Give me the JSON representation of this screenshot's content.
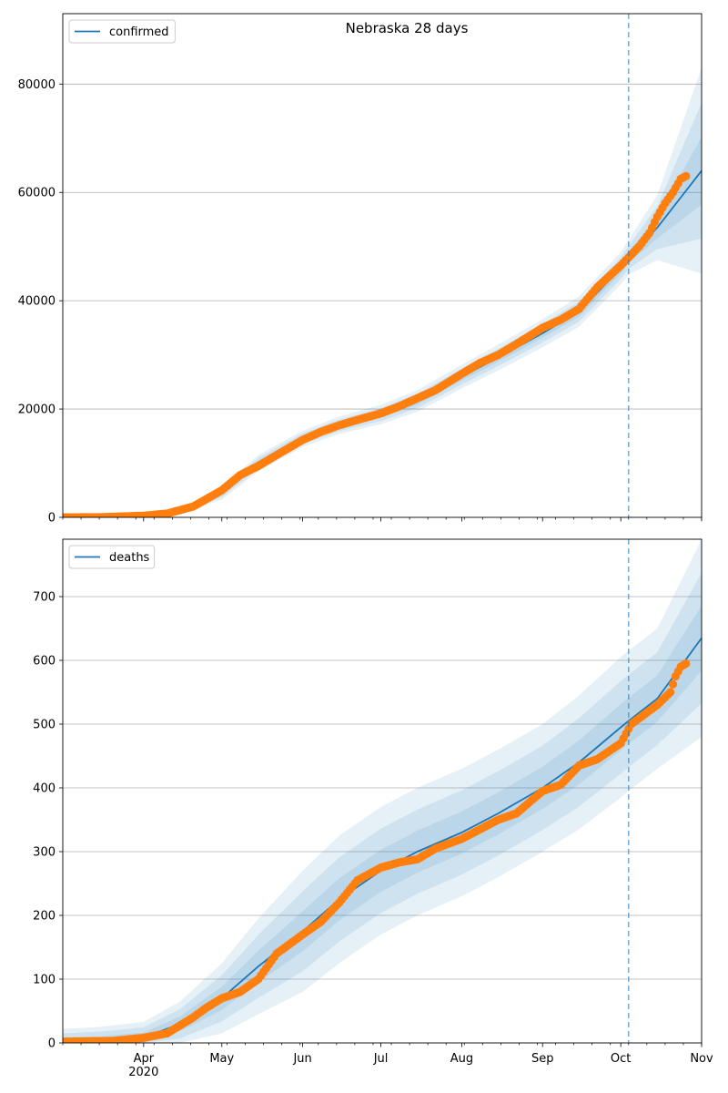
{
  "chart_data": [
    {
      "type": "line",
      "title": "Nebraska 28 days",
      "legend": [
        "confirmed"
      ],
      "legend_position": "upper-left",
      "ylim": [
        0,
        93000
      ],
      "yticks": [
        0,
        20000,
        40000,
        60000,
        80000
      ],
      "x_range": [
        "2020-03-01",
        "2020-11-01"
      ],
      "forecast_start": "2020-10-04",
      "grid": "horizontal",
      "colors": {
        "line": "#1f77b4",
        "observed": "#ff7f0e",
        "band": "#1f77b4"
      },
      "series": [
        {
          "name": "confirmed",
          "kind": "model",
          "x": [
            "2020-03-01",
            "2020-03-15",
            "2020-04-01",
            "2020-04-15",
            "2020-05-01",
            "2020-05-15",
            "2020-06-01",
            "2020-06-15",
            "2020-07-01",
            "2020-07-15",
            "2020-08-01",
            "2020-08-15",
            "2020-09-01",
            "2020-09-15",
            "2020-10-01",
            "2020-10-04",
            "2020-10-15",
            "2020-11-01"
          ],
          "values": [
            0,
            100,
            250,
            1000,
            4500,
            10000,
            14500,
            17000,
            19000,
            21500,
            26000,
            29500,
            34000,
            38000,
            46000,
            48000,
            53500,
            64000
          ],
          "band_width": [
            0,
            50,
            150,
            500,
            1200,
            1500,
            1500,
            1600,
            1800,
            2000,
            2200,
            2400,
            2600,
            2800,
            3000,
            3200,
            6000,
            19000
          ]
        },
        {
          "name": "",
          "kind": "observed",
          "x": [
            "2020-03-01",
            "2020-03-15",
            "2020-04-01",
            "2020-04-10",
            "2020-04-20",
            "2020-05-01",
            "2020-05-08",
            "2020-05-15",
            "2020-05-22",
            "2020-06-01",
            "2020-06-08",
            "2020-06-15",
            "2020-06-22",
            "2020-07-01",
            "2020-07-08",
            "2020-07-15",
            "2020-07-22",
            "2020-08-01",
            "2020-08-08",
            "2020-08-15",
            "2020-08-22",
            "2020-09-01",
            "2020-09-08",
            "2020-09-15",
            "2020-09-22",
            "2020-10-01",
            "2020-10-05",
            "2020-10-08",
            "2020-10-12",
            "2020-10-15",
            "2020-10-18",
            "2020-10-21",
            "2020-10-24",
            "2020-10-26"
          ],
          "values": [
            10,
            20,
            300,
            700,
            2000,
            5000,
            7800,
            9500,
            11500,
            14300,
            15800,
            17000,
            18000,
            19200,
            20500,
            22000,
            23500,
            26500,
            28500,
            30000,
            32000,
            35000,
            36500,
            38500,
            42500,
            46500,
            48500,
            50000,
            52500,
            55500,
            58000,
            60000,
            62500,
            63000
          ]
        }
      ]
    },
    {
      "type": "line",
      "title": "",
      "legend": [
        "deaths"
      ],
      "legend_position": "upper-left",
      "ylim": [
        0,
        790
      ],
      "yticks": [
        0,
        100,
        200,
        300,
        400,
        500,
        600,
        700
      ],
      "x_range": [
        "2020-03-01",
        "2020-11-01"
      ],
      "xtick_labels": [
        "Apr\n2020",
        "May",
        "Jun",
        "Jul",
        "Aug",
        "Sep",
        "Oct",
        "Nov"
      ],
      "forecast_start": "2020-10-04",
      "grid": "horizontal",
      "colors": {
        "line": "#1f77b4",
        "observed": "#ff7f0e",
        "band": "#1f77b4"
      },
      "series": [
        {
          "name": "deaths",
          "kind": "model",
          "x": [
            "2020-03-01",
            "2020-03-15",
            "2020-04-01",
            "2020-04-15",
            "2020-05-01",
            "2020-05-15",
            "2020-06-01",
            "2020-06-15",
            "2020-07-01",
            "2020-07-15",
            "2020-08-01",
            "2020-08-15",
            "2020-09-01",
            "2020-09-15",
            "2020-10-01",
            "2020-10-04",
            "2020-10-15",
            "2020-11-01"
          ],
          "values": [
            2,
            3,
            8,
            30,
            70,
            120,
            175,
            225,
            270,
            300,
            330,
            360,
            400,
            440,
            495,
            505,
            540,
            635
          ],
          "band_width": [
            20,
            22,
            25,
            35,
            55,
            75,
            95,
            100,
            100,
            100,
            100,
            100,
            100,
            105,
            110,
            110,
            110,
            155
          ]
        },
        {
          "name": "",
          "kind": "observed",
          "x": [
            "2020-03-01",
            "2020-03-20",
            "2020-04-01",
            "2020-04-10",
            "2020-04-20",
            "2020-04-25",
            "2020-05-01",
            "2020-05-08",
            "2020-05-15",
            "2020-05-22",
            "2020-06-01",
            "2020-06-08",
            "2020-06-15",
            "2020-06-22",
            "2020-07-01",
            "2020-07-08",
            "2020-07-15",
            "2020-07-22",
            "2020-08-01",
            "2020-08-08",
            "2020-08-15",
            "2020-08-22",
            "2020-09-01",
            "2020-09-08",
            "2020-09-15",
            "2020-09-22",
            "2020-10-01",
            "2020-10-05",
            "2020-10-10",
            "2020-10-15",
            "2020-10-20",
            "2020-10-22",
            "2020-10-24",
            "2020-10-26"
          ],
          "values": [
            2,
            3,
            8,
            15,
            40,
            55,
            70,
            80,
            100,
            140,
            170,
            190,
            220,
            255,
            275,
            283,
            288,
            305,
            320,
            335,
            350,
            360,
            395,
            405,
            435,
            445,
            470,
            500,
            515,
            530,
            550,
            575,
            590,
            595
          ]
        }
      ]
    }
  ]
}
